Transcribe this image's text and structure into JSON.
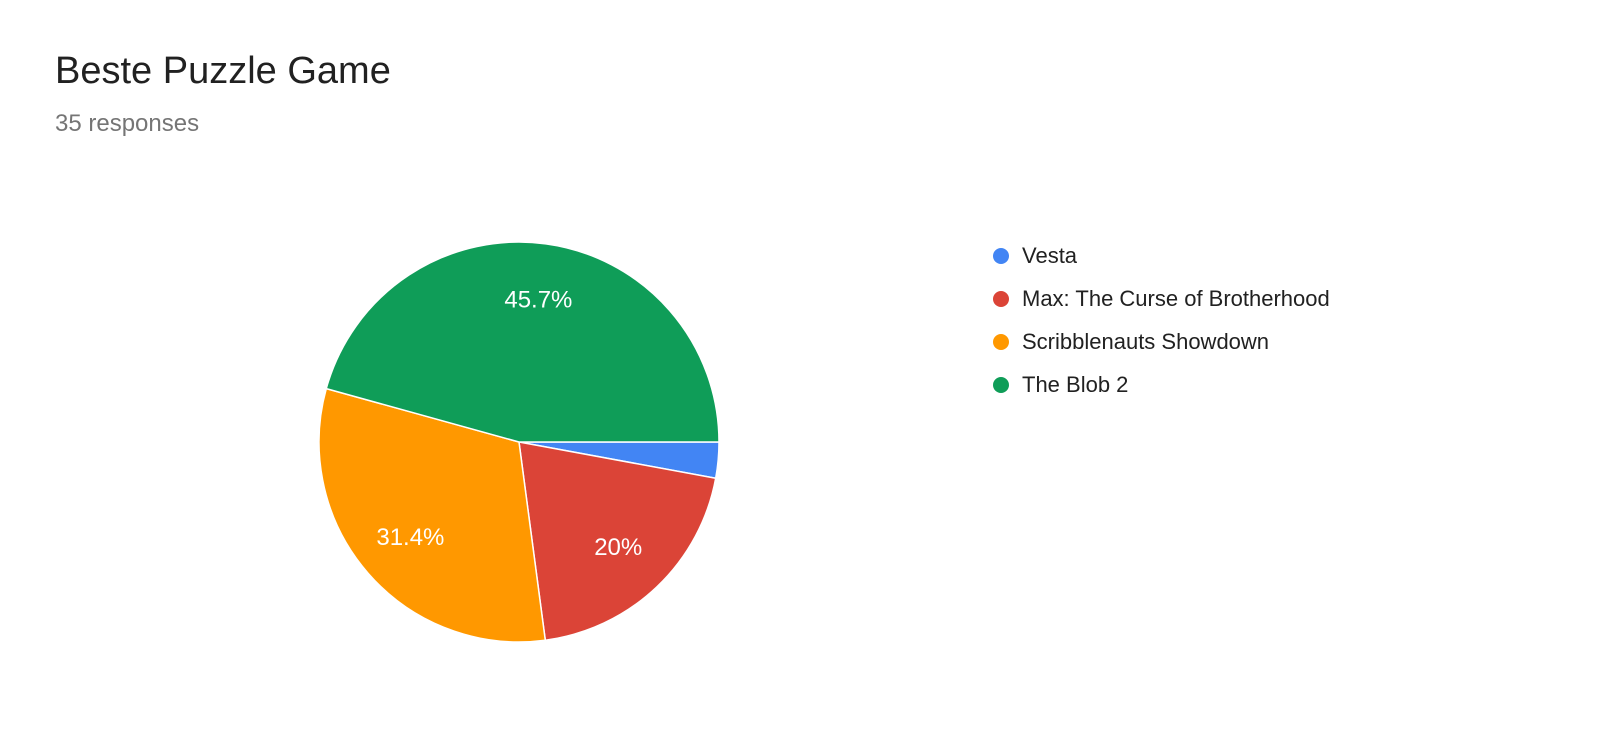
{
  "header": {
    "title": "Beste Puzzle Game",
    "subtitle": "35 responses"
  },
  "legend": {
    "items": [
      {
        "label": "Vesta",
        "color": "#4285F4"
      },
      {
        "label": "Max: The Curse of Brotherhood",
        "color": "#DB4437"
      },
      {
        "label": "Scribblenauts Showdown",
        "color": "#FF9800"
      },
      {
        "label": "The Blob 2",
        "color": "#0F9D58"
      }
    ]
  },
  "chart_data": {
    "type": "pie",
    "title": "Beste Puzzle Game",
    "subtitle": "35 responses",
    "total_responses": 35,
    "legend_position": "right",
    "start_angle_deg": 90,
    "direction": "clockwise",
    "slices": [
      {
        "label": "Vesta",
        "percent": 2.9,
        "display_label": "",
        "color": "#4285F4"
      },
      {
        "label": "Max: The Curse of Brotherhood",
        "percent": 20,
        "display_label": "20%",
        "color": "#DB4437"
      },
      {
        "label": "Scribblenauts Showdown",
        "percent": 31.4,
        "display_label": "31.4%",
        "color": "#FF9800"
      },
      {
        "label": "The Blob 2",
        "percent": 45.7,
        "display_label": "45.7%",
        "color": "#0F9D58"
      }
    ]
  }
}
